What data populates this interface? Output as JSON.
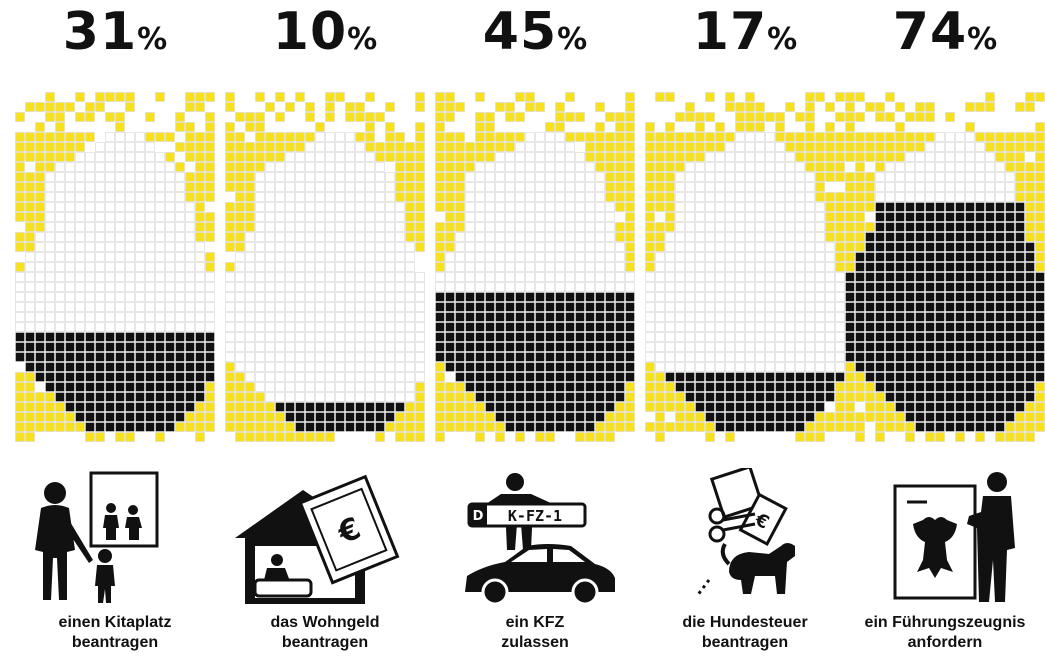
{
  "chart_data": {
    "type": "waffle-map",
    "unit": "%",
    "colors": {
      "filled": "#111111",
      "land_empty": "#ffffff",
      "outside": "#f7e01d",
      "cell_border": "#d8d8d8"
    },
    "items": [
      {
        "value": 31,
        "label_line1": "einen Kitaplatz",
        "label_line2": "beantragen",
        "icon": "parent-children-icon"
      },
      {
        "value": 10,
        "label_line1": "das Wohngeld",
        "label_line2": "beantragen",
        "icon": "house-money-icon"
      },
      {
        "value": 45,
        "label_line1": "ein KFZ",
        "label_line2": "zulassen",
        "icon": "car-license-plate-icon",
        "plate_text": "K-FZ-1",
        "plate_country": "D"
      },
      {
        "value": 17,
        "label_line1": "die Hundesteuer",
        "label_line2": "beantragen",
        "icon": "dog-tax-icon"
      },
      {
        "value": 74,
        "label_line1": "ein Führungszeugnis",
        "label_line2": "anfordern",
        "icon": "certificate-eagle-icon"
      }
    ]
  }
}
